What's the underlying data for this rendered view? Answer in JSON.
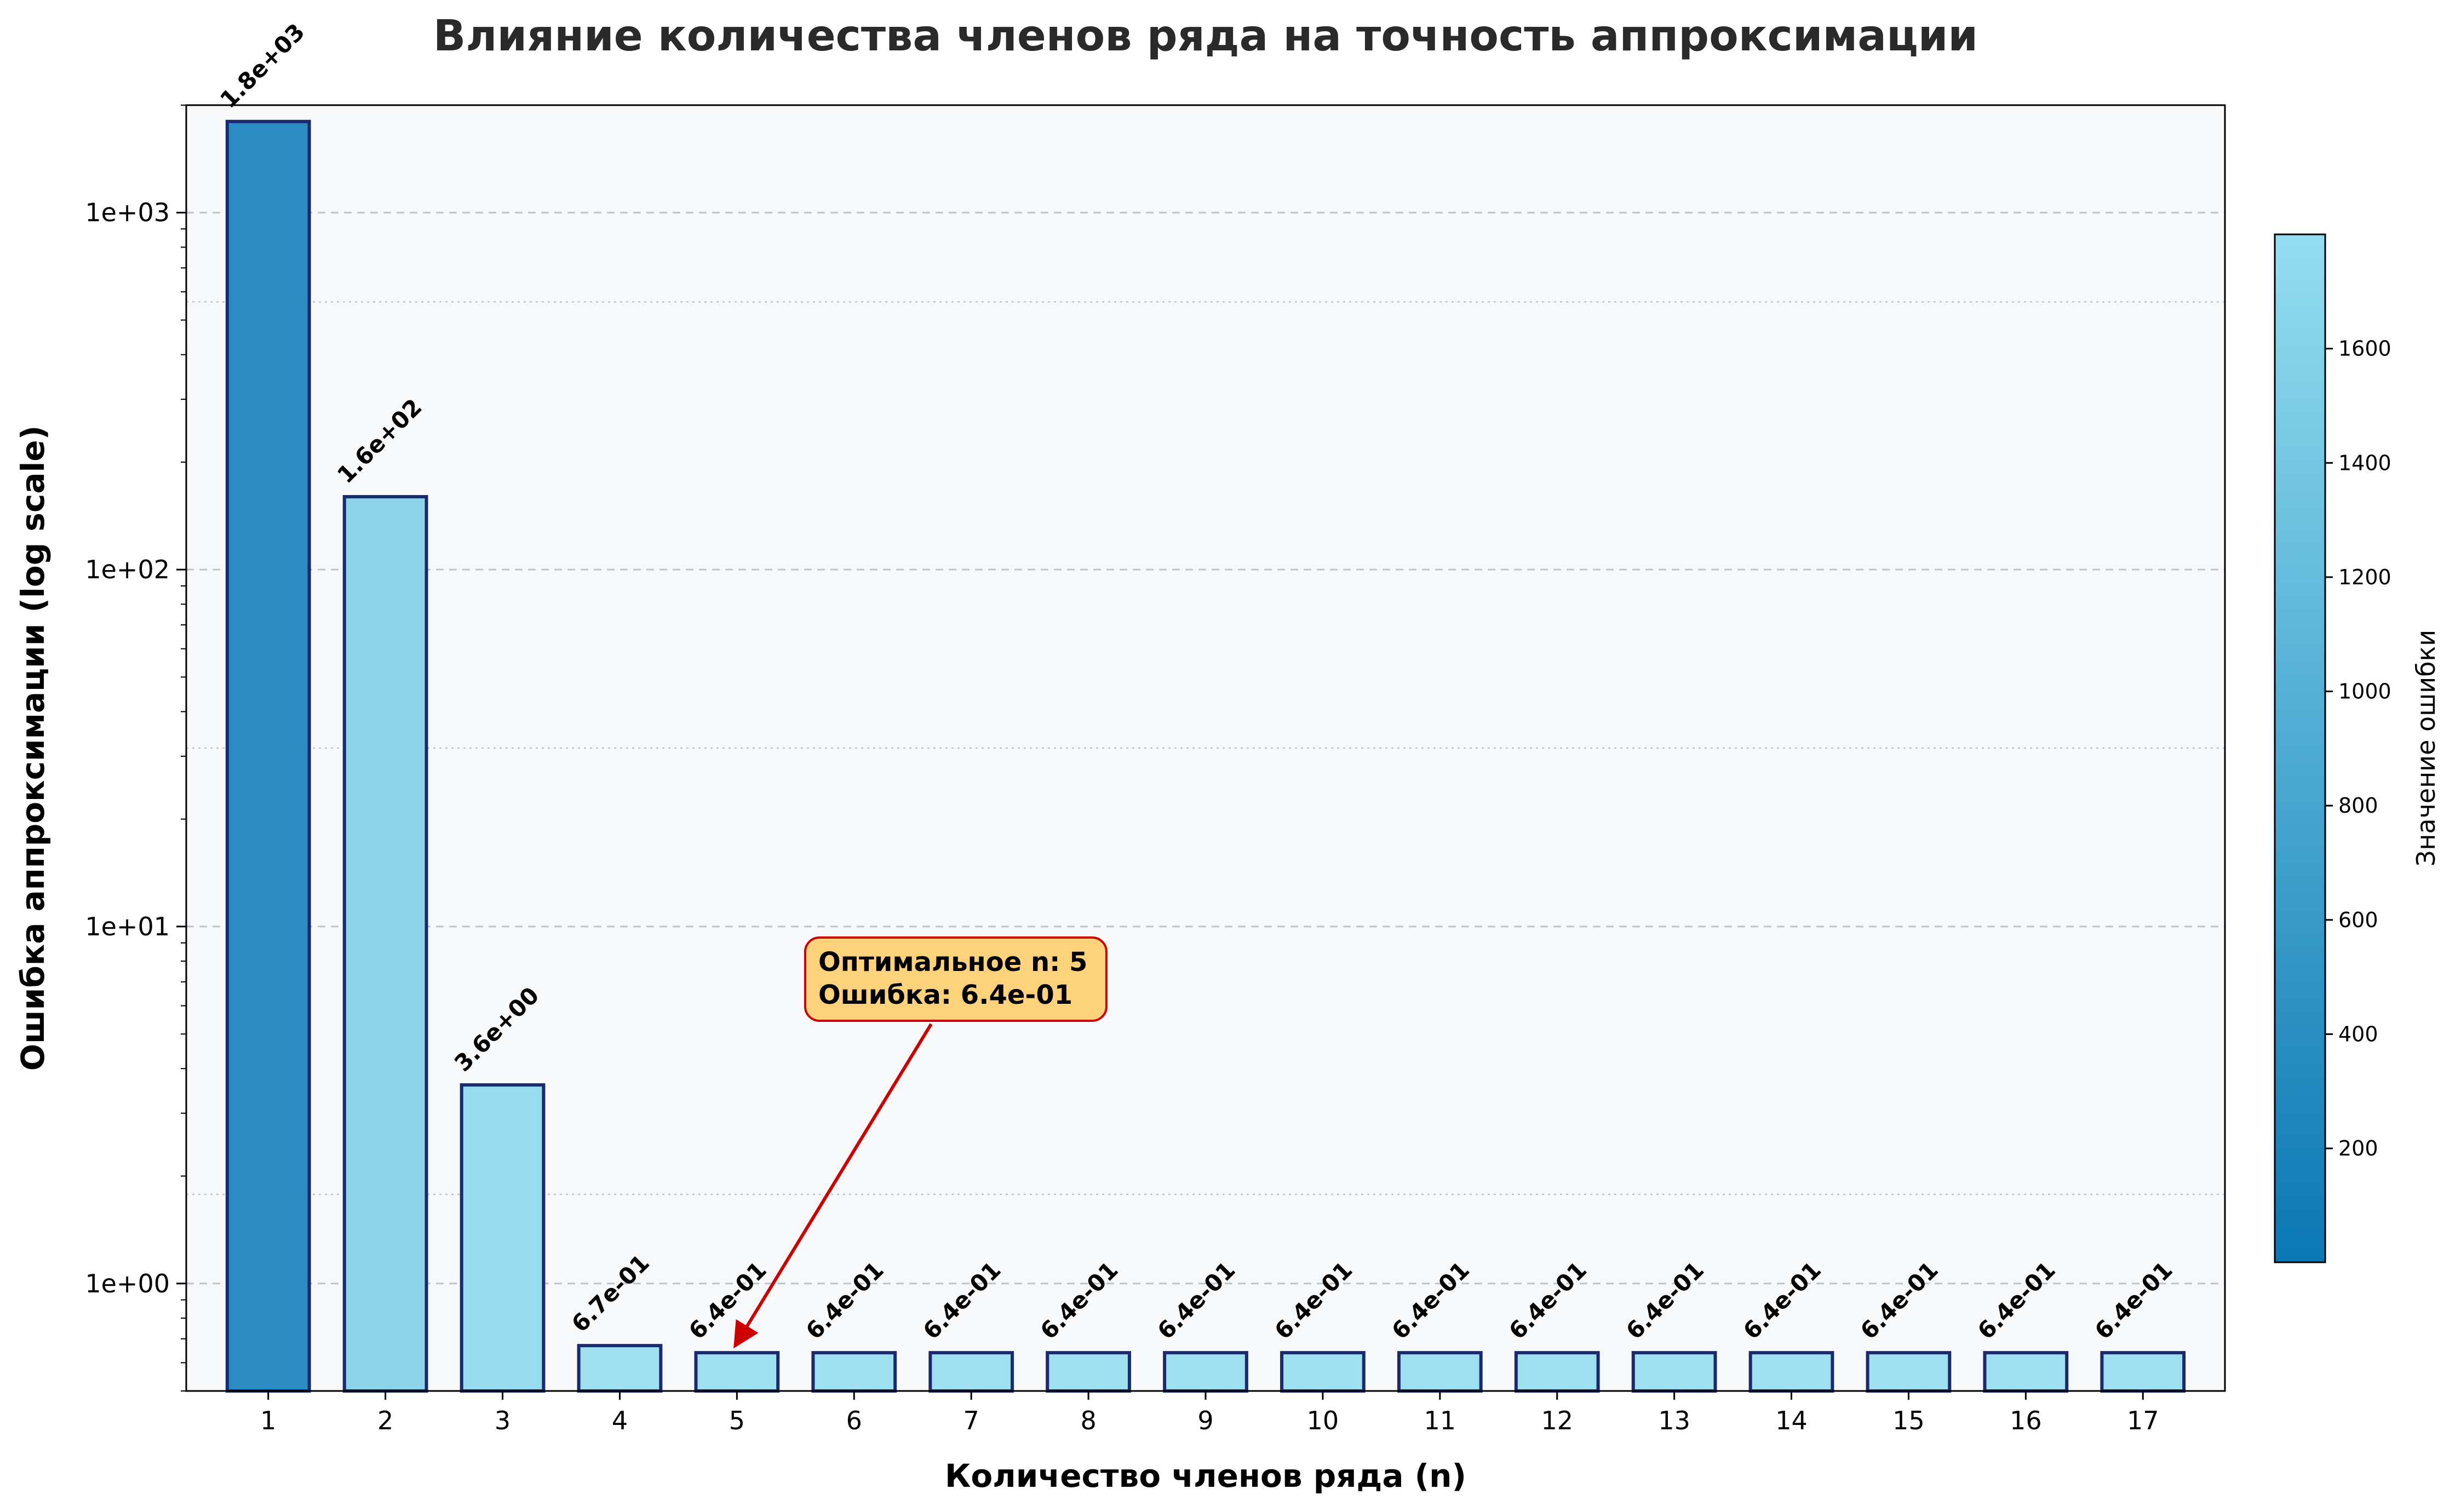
{
  "chart_data": {
    "type": "bar",
    "title": "Влияние количества членов ряда на точность аппроксимации",
    "xlabel": "Количество членов ряда (n)",
    "ylabel": "Ошибка аппроксимации (log scale)",
    "yscale": "log",
    "ylim": [
      0.5,
      2000
    ],
    "categories": [
      "1",
      "2",
      "3",
      "4",
      "5",
      "6",
      "7",
      "8",
      "9",
      "10",
      "11",
      "12",
      "13",
      "14",
      "15",
      "16",
      "17"
    ],
    "values": [
      1800,
      160,
      3.6,
      0.67,
      0.64,
      0.64,
      0.64,
      0.64,
      0.64,
      0.64,
      0.64,
      0.64,
      0.64,
      0.64,
      0.64,
      0.64,
      0.64
    ],
    "data_labels": [
      "1.8e+03",
      "1.6e+02",
      "3.6e+00",
      "6.7e-01",
      "6.4e-01",
      "6.4e-01",
      "6.4e-01",
      "6.4e-01",
      "6.4e-01",
      "6.4e-01",
      "6.4e-01",
      "6.4e-01",
      "6.4e-01",
      "6.4e-01",
      "6.4e-01",
      "6.4e-01",
      "6.4e-01"
    ],
    "bar_colors": [
      "#2b8cc4",
      "#8dd3ea",
      "#97dbef",
      "#9ee0f0",
      "#9ee0f0",
      "#9ee0f0",
      "#9ee0f0",
      "#9ee0f0",
      "#9ee0f0",
      "#9ee0f0",
      "#9ee0f0",
      "#9ee0f0",
      "#9ee0f0",
      "#9ee0f0",
      "#9ee0f0",
      "#9ee0f0",
      "#9ee0f0"
    ],
    "bar_edge_color": "#1a2a6c",
    "y_ticks": [
      {
        "value": 1,
        "label": "1e+00"
      },
      {
        "value": 10,
        "label": "1e+01"
      },
      {
        "value": 100,
        "label": "1e+02"
      },
      {
        "value": 1000,
        "label": "1e+03"
      }
    ],
    "grid": true,
    "annotation": {
      "lines": [
        "Оптимальное n: 5",
        "Ошибка: 6.4e-01"
      ],
      "target_category": "5",
      "target_value": 0.64,
      "box_color": "#fdd27a",
      "edge_color": "#cc0000"
    },
    "colorbar": {
      "label": "Значение ошибки",
      "range": [
        0.64,
        1800
      ],
      "ticks": [
        200,
        400,
        600,
        800,
        1000,
        1200,
        1400,
        1600
      ],
      "color_low": "#0a78b4",
      "color_high": "#93def0"
    },
    "colors": {
      "plot_background": "#f6f8fa",
      "grid": "#bfc4ca"
    }
  }
}
